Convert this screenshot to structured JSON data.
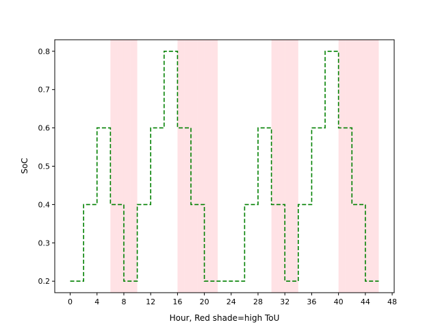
{
  "chart_data": {
    "type": "line",
    "line_style": "step-post, dashed",
    "title": "",
    "xlabel": "Hour, Red shade=high ToU",
    "ylabel": "SoC",
    "xlim": [
      -2.3,
      48.3
    ],
    "ylim": [
      0.17,
      0.83
    ],
    "xticks": [
      0,
      4,
      8,
      12,
      16,
      20,
      24,
      28,
      32,
      36,
      40,
      44,
      48
    ],
    "yticks": [
      0.2,
      0.3,
      0.4,
      0.5,
      0.6,
      0.7,
      0.8
    ],
    "grid": false,
    "legend": "none",
    "colors": {
      "line": "#008000",
      "shade": "#ffb6be"
    },
    "shaded_hours": [
      6,
      7,
      8,
      9,
      16,
      17,
      18,
      19,
      20,
      21,
      30,
      31,
      32,
      33,
      40,
      41,
      42,
      43,
      44,
      45
    ],
    "series": [
      {
        "x": [
          0,
          2,
          4,
          6,
          8,
          10,
          12,
          14,
          16,
          18,
          20,
          22,
          24,
          26,
          28,
          30,
          32,
          34,
          36,
          38,
          40,
          42,
          44,
          46
        ],
        "values": [
          0.2,
          0.4,
          0.6,
          0.4,
          0.2,
          0.4,
          0.6,
          0.8,
          0.6,
          0.4,
          0.2,
          0.2,
          0.2,
          0.4,
          0.6,
          0.4,
          0.2,
          0.4,
          0.6,
          0.8,
          0.6,
          0.4,
          0.2,
          0.2
        ]
      }
    ]
  }
}
